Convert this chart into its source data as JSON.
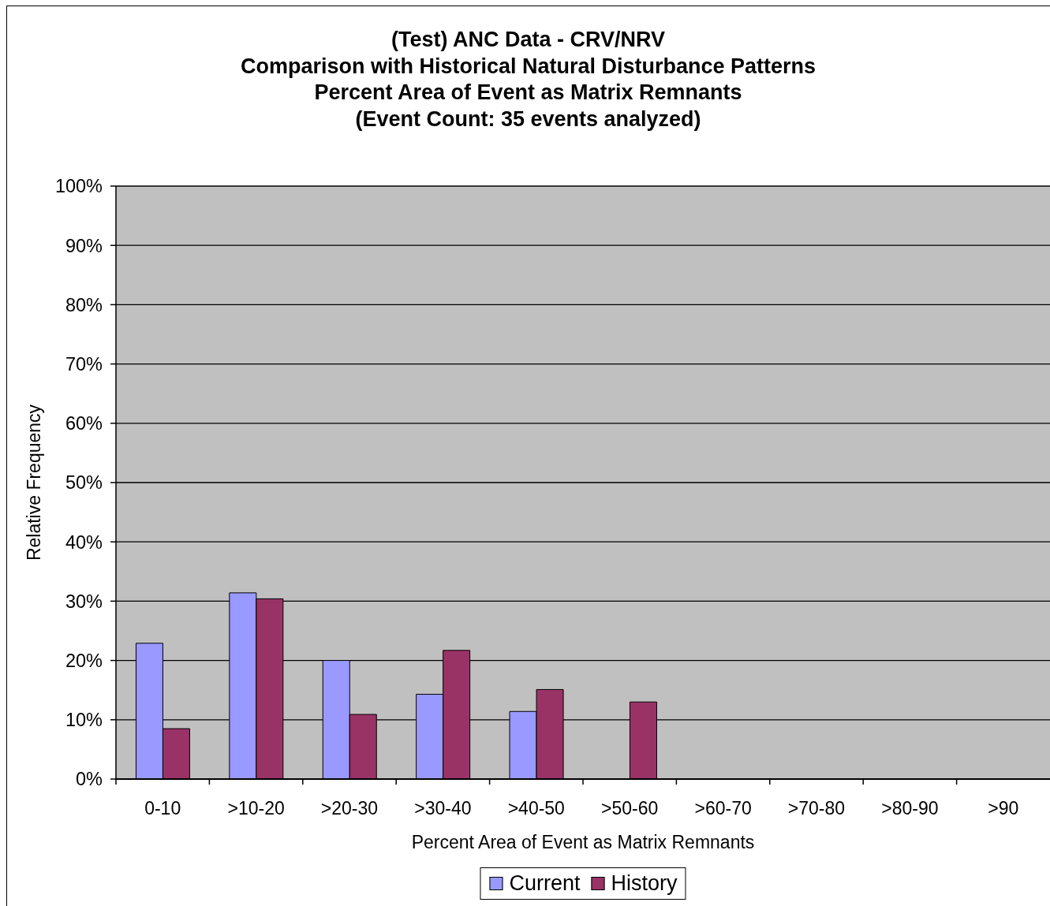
{
  "chart_data": {
    "type": "bar",
    "title": "(Test) ANC Data - CRV/NRV\nComparison with Historical Natural Disturbance Patterns\nPercent Area of Event as Matrix Remnants\n(Event Count: 35 events analyzed)",
    "xlabel": "Percent Area of Event as Matrix Remnants",
    "ylabel": "Relative Frequency",
    "categories": [
      "0-10",
      ">10-20",
      ">20-30",
      ">30-40",
      ">40-50",
      ">50-60",
      ">60-70",
      ">70-80",
      ">80-90",
      ">90"
    ],
    "series": [
      {
        "name": "Current",
        "color": "#9999ff",
        "values": [
          22.9,
          31.4,
          20.0,
          14.3,
          11.4,
          0,
          0,
          0,
          0,
          0
        ]
      },
      {
        "name": "History",
        "color": "#993366",
        "values": [
          8.5,
          30.4,
          10.9,
          21.7,
          15.1,
          13.0,
          0,
          0,
          0,
          0
        ]
      }
    ],
    "ylim": [
      0,
      100
    ],
    "yticks": [
      {
        "value": 0,
        "label": "0%"
      },
      {
        "value": 10,
        "label": "10%"
      },
      {
        "value": 20,
        "label": "20%"
      },
      {
        "value": 30,
        "label": "30%"
      },
      {
        "value": 40,
        "label": "40%"
      },
      {
        "value": 50,
        "label": "50%"
      },
      {
        "value": 60,
        "label": "60%"
      },
      {
        "value": 70,
        "label": "70%"
      },
      {
        "value": 80,
        "label": "80%"
      },
      {
        "value": 90,
        "label": "90%"
      },
      {
        "value": 100,
        "label": "100%"
      }
    ],
    "grid": "y",
    "legend": "bottom"
  }
}
